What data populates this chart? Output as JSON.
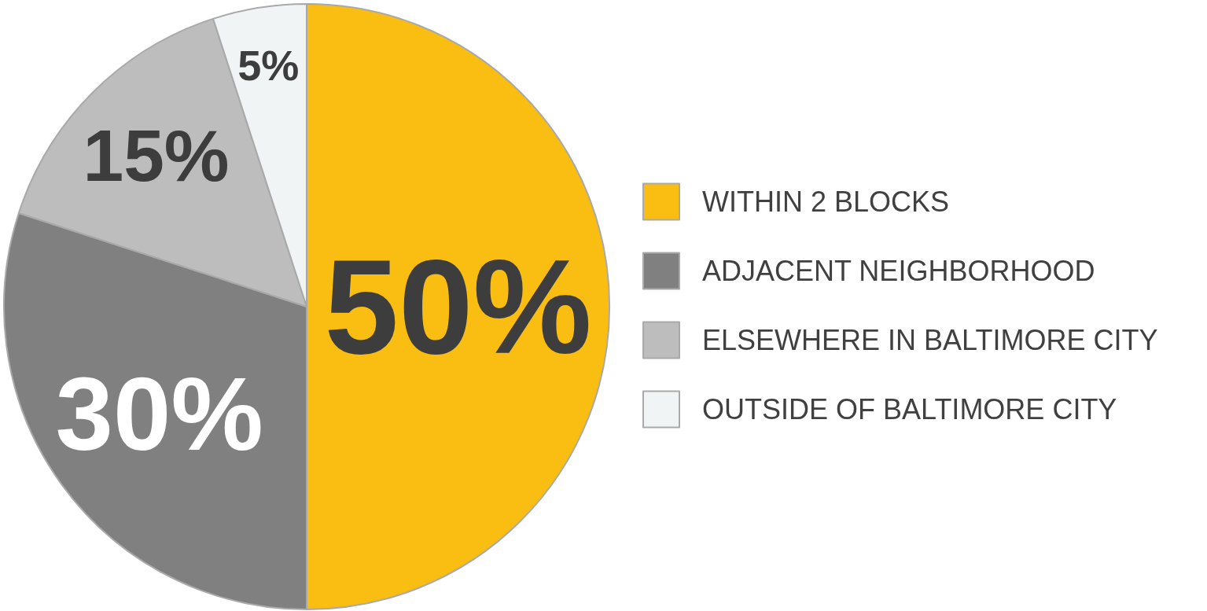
{
  "chart_data": {
    "type": "pie",
    "categories": [
      "WITHIN 2 BLOCKS",
      "ADJACENT NEIGHBORHOOD",
      "ELSEWHERE IN BALTIMORE CITY",
      "OUTSIDE OF BALTIMORE CITY"
    ],
    "values": [
      50,
      30,
      15,
      5
    ],
    "value_labels": [
      "50%",
      "30%",
      "15%",
      "5%"
    ],
    "colors": [
      "#f9be11",
      "#7f807f",
      "#bdbdbd",
      "#f1f4f5"
    ],
    "legend": "right"
  }
}
